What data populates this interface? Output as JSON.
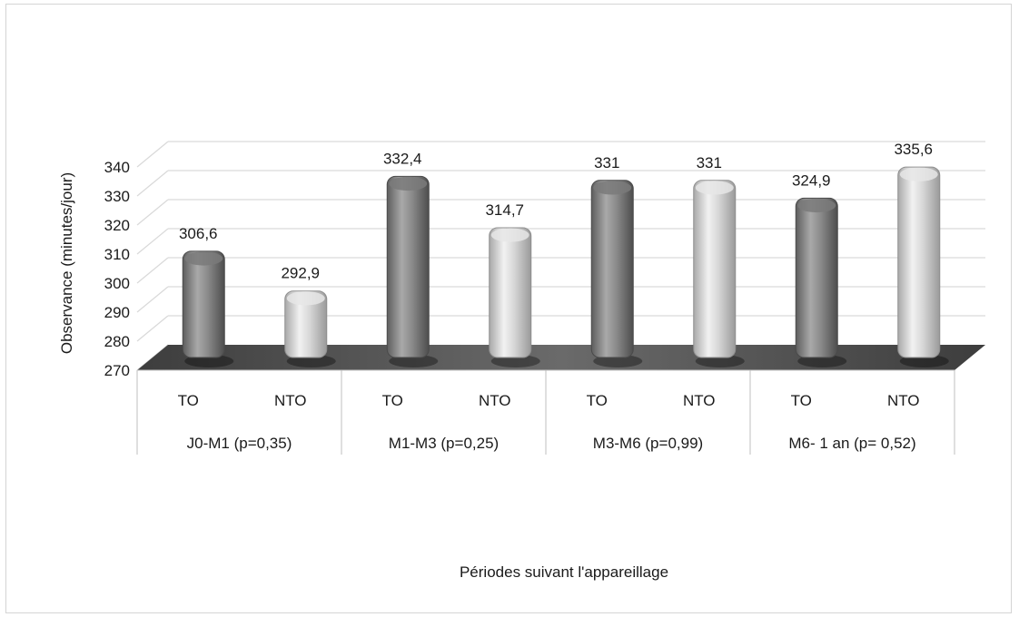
{
  "chart_data": {
    "type": "bar",
    "ylabel": "Observance (minutes/jour)",
    "xlabel": "Périodes suivant l'appareillage",
    "ylim": [
      270,
      340
    ],
    "yticks": [
      270,
      280,
      290,
      300,
      310,
      320,
      330,
      340
    ],
    "ytick_labels": [
      "270",
      "280",
      "290",
      "300",
      "310",
      "320",
      "330",
      "340"
    ],
    "grid": true,
    "groups": [
      {
        "label": "J0-M1 (p=0,35)",
        "bars": [
          {
            "category": "TO",
            "value": 306.6,
            "value_label": "306,6"
          },
          {
            "category": "NTO",
            "value": 292.9,
            "value_label": "292,9"
          }
        ]
      },
      {
        "label": "M1-M3 (p=0,25)",
        "bars": [
          {
            "category": "TO",
            "value": 332.4,
            "value_label": "332,4"
          },
          {
            "category": "NTO",
            "value": 314.7,
            "value_label": "314,7"
          }
        ]
      },
      {
        "label": "M3-M6 (p=0,99)",
        "bars": [
          {
            "category": "TO",
            "value": 331,
            "value_label": "331"
          },
          {
            "category": "NTO",
            "value": 331,
            "value_label": "331"
          }
        ]
      },
      {
        "label": "M6- 1 an (p= 0,52)",
        "bars": [
          {
            "category": "TO",
            "value": 324.9,
            "value_label": "324,9"
          },
          {
            "category": "NTO",
            "value": 335.6,
            "value_label": "335,6"
          }
        ]
      }
    ],
    "colors": {
      "TO": "#8c8c8c",
      "NTO": "#d4d4d4",
      "floor": "#5a5a5a",
      "grid": "#d9d9d9"
    }
  }
}
